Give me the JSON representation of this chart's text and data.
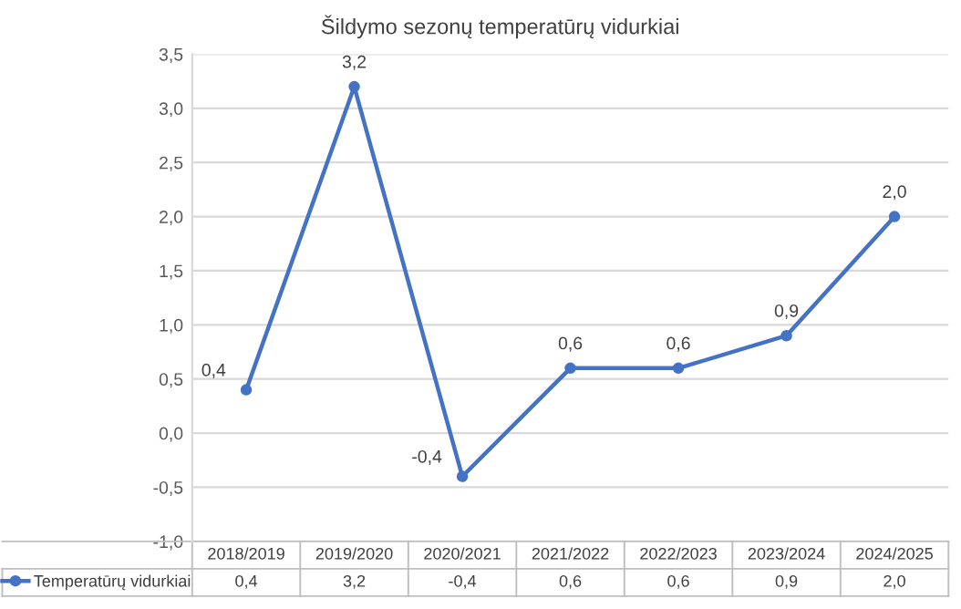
{
  "chart_data": {
    "type": "line",
    "title": "Šildymo sezonų temperatūrų vidurkiai",
    "categories": [
      "2018/2019",
      "2019/2020",
      "2020/2021",
      "2021/2022",
      "2022/2023",
      "2023/2024",
      "2024/2025"
    ],
    "series": [
      {
        "name": "Temperatūrų vidurkiai",
        "color": "#4472c4",
        "values": [
          0.4,
          3.2,
          -0.4,
          0.6,
          0.6,
          0.9,
          2.0
        ],
        "value_labels": [
          "0,4",
          "3,2",
          "-0,4",
          "0,6",
          "0,6",
          "0,9",
          "2,0"
        ]
      }
    ],
    "ylim": [
      -1.0,
      3.5
    ],
    "yticks": [
      {
        "value": -1.0,
        "label": "-1,0"
      },
      {
        "value": -0.5,
        "label": "-0,5"
      },
      {
        "value": 0.0,
        "label": "0,0"
      },
      {
        "value": 0.5,
        "label": "0,5"
      },
      {
        "value": 1.0,
        "label": "1,0"
      },
      {
        "value": 1.5,
        "label": "1,5"
      },
      {
        "value": 2.0,
        "label": "2,0"
      },
      {
        "value": 2.5,
        "label": "2,5"
      },
      {
        "value": 3.0,
        "label": "3,0"
      },
      {
        "value": 3.5,
        "label": "3,5"
      }
    ],
    "grid": "y",
    "legend": "bottom left",
    "marker": "circle",
    "line_style": "solid"
  }
}
